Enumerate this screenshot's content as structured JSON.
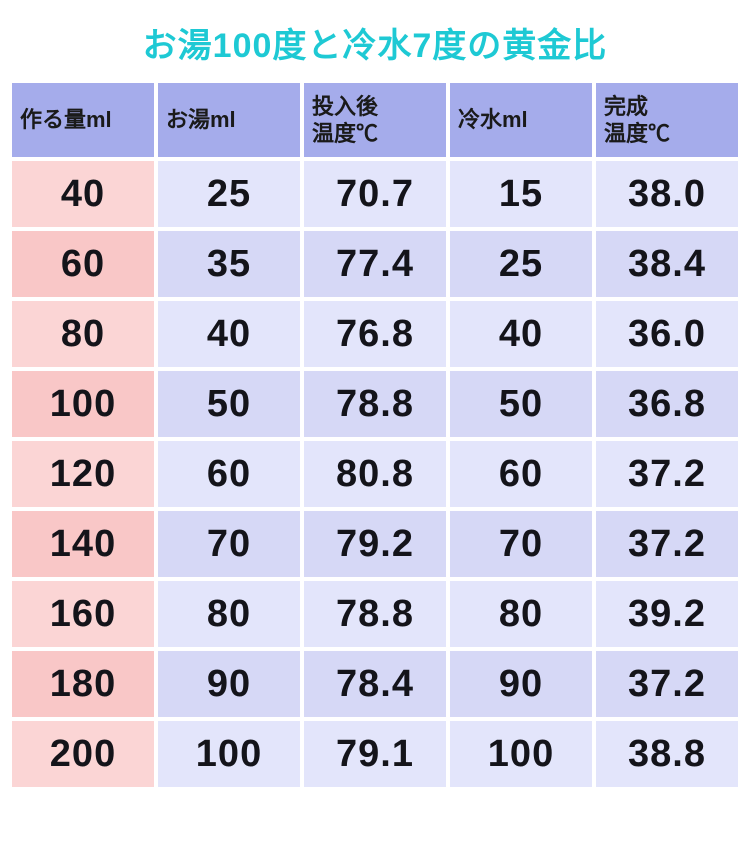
{
  "title": {
    "text": "お湯100度と冷水7度の黄金比",
    "color": "#1ec9d4",
    "fontsize": 34
  },
  "table": {
    "type": "table",
    "header_bg": "#a5aceb",
    "header_fontsize": 22,
    "body_fontsize": 38,
    "first_col_odd_bg": "#fbd5d5",
    "first_col_even_bg": "#f9c7c7",
    "other_col_odd_bg": "#e3e5fb",
    "other_col_even_bg": "#d6d8f6",
    "columns": [
      "作る量ml",
      "お湯ml",
      "投入後\n温度℃",
      "冷水ml",
      "完成\n温度℃"
    ],
    "rows": [
      [
        "40",
        "25",
        "70.7",
        "15",
        "38.0"
      ],
      [
        "60",
        "35",
        "77.4",
        "25",
        "38.4"
      ],
      [
        "80",
        "40",
        "76.8",
        "40",
        "36.0"
      ],
      [
        "100",
        "50",
        "78.8",
        "50",
        "36.8"
      ],
      [
        "120",
        "60",
        "80.8",
        "60",
        "37.2"
      ],
      [
        "140",
        "70",
        "79.2",
        "70",
        "37.2"
      ],
      [
        "160",
        "80",
        "78.8",
        "80",
        "39.2"
      ],
      [
        "180",
        "90",
        "78.4",
        "90",
        "37.2"
      ],
      [
        "200",
        "100",
        "79.1",
        "100",
        "38.8"
      ]
    ]
  }
}
